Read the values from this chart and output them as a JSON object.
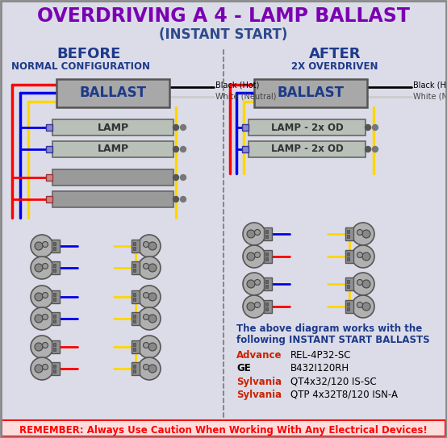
{
  "title_line1": "OVERDRIVING A 4 - LAMP BALLAST",
  "title_line2": "(INSTANT START)",
  "title_color": "#7B00B4",
  "subtitle2_color": "#2E4B8B",
  "bg_color": "#DCDCE8",
  "before_label": "BEFORE",
  "before_sub": "NORMAL CONFIGURATION",
  "after_label": "AFTER",
  "after_sub": "2X OVERDRIVEN",
  "before_color": "#1E3A8A",
  "after_color": "#1E3A8A",
  "ballast_fill": "#A8A8A8",
  "ballast_stroke": "#555555",
  "lamp_fill": "#B8C0B8",
  "lamp_stroke": "#666666",
  "wire_red": "#FF0000",
  "wire_blue": "#0000EE",
  "wire_yellow": "#FFD700",
  "wire_black": "#000000",
  "divider_color": "#888888",
  "remember_text": "REMEMBER: Always Use Caution When Working With Any Electrical Devices!",
  "remember_color": "#FF0000",
  "ballast_text_color": "#1E3A8A",
  "lamp_text_color": "#333333",
  "info_text_line1": "The above diagram works with the",
  "info_text_line2": "following INSTANT START BALLASTS",
  "info_color": "#1E3A8A",
  "advance_label": "Advance",
  "advance_val": "REL-4P32-SC",
  "ge_label": "GE",
  "ge_val": "B432I120RH",
  "syl1_label": "Sylvania",
  "syl1_val": "QT4x32/120 IS-SC",
  "syl2_label": "Sylvania",
  "syl2_val": "QTP 4x32T8/120 ISN-A",
  "advance_label_color": "#CC2200",
  "ge_label_color": "#000000",
  "syl1_label_color": "#CC2200",
  "syl2_label_color": "#CC2200",
  "black_hot_label": "Black (Hot)",
  "white_neutral_label": "White (Neutral)"
}
